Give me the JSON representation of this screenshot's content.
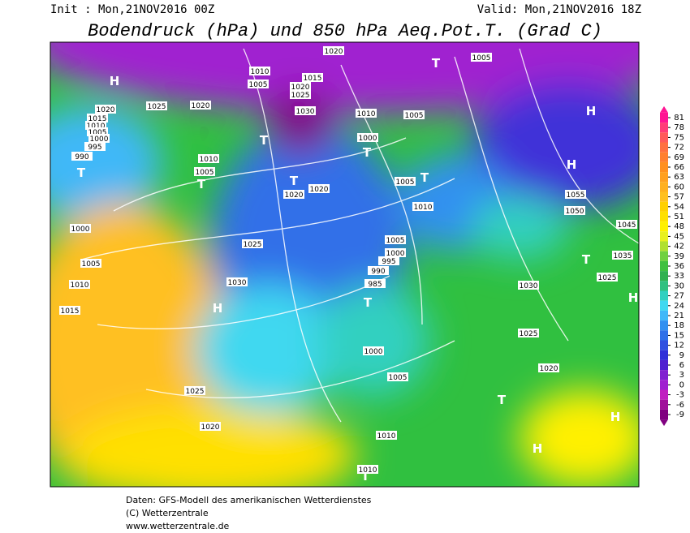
{
  "header": {
    "init": "Init : Mon,21NOV2016 00Z",
    "valid": "Valid: Mon,21NOV2016 18Z",
    "title": "Bodendruck (hPa) und 850 hPa Aeq.Pot.T. (Grad C)"
  },
  "colorbar": {
    "ticks": [
      81,
      78,
      75,
      72,
      69,
      66,
      63,
      60,
      57,
      54,
      51,
      48,
      45,
      42,
      39,
      36,
      33,
      30,
      27,
      24,
      21,
      18,
      15,
      12,
      9,
      6,
      3,
      0,
      -3,
      -6,
      -9
    ],
    "colors": [
      "#ff1493",
      "#ff3c78",
      "#ff5a5a",
      "#ff7040",
      "#ff8030",
      "#ff9020",
      "#ffa020",
      "#ffb020",
      "#ffc020",
      "#ffd000",
      "#ffe000",
      "#fff000",
      "#e8f020",
      "#b0e030",
      "#70d040",
      "#40c040",
      "#30b050",
      "#30c080",
      "#30d0c0",
      "#40d8f0",
      "#40b8f8",
      "#3090f0",
      "#3070e8",
      "#3050e0",
      "#3030d8",
      "#5020d0",
      "#8020d0",
      "#a020d0",
      "#c020c0",
      "#a0109a",
      "#800080"
    ]
  },
  "map": {
    "labels": [
      "H",
      "H",
      "H",
      "H",
      "H",
      "H",
      "H",
      "T",
      "T",
      "T",
      "T",
      "T",
      "T",
      "T",
      "T",
      "T",
      "T",
      "T",
      "1020",
      "1005",
      "1010",
      "1015",
      "1020",
      "1005",
      "1025",
      "1030",
      "1025",
      "1020",
      "1020",
      "1015",
      "1010",
      "1005",
      "1000",
      "995",
      "990",
      "1010",
      "1005",
      "1000",
      "1010",
      "1005",
      "1020",
      "1020",
      "1005",
      "1010",
      "1000",
      "1025",
      "1005",
      "1000",
      "995",
      "990",
      "985",
      "1005",
      "1010",
      "1015",
      "1030",
      "1030",
      "1055",
      "1050",
      "1045",
      "1035",
      "1025",
      "1025",
      "1000",
      "1005",
      "1025",
      "1020",
      "1010",
      "1010",
      "1020"
    ]
  },
  "footer": {
    "lines": [
      "Daten: GFS-Modell des amerikanischen Wetterdienstes",
      "(C) Wetterzentrale",
      "www.wetterzentrale.de"
    ]
  }
}
